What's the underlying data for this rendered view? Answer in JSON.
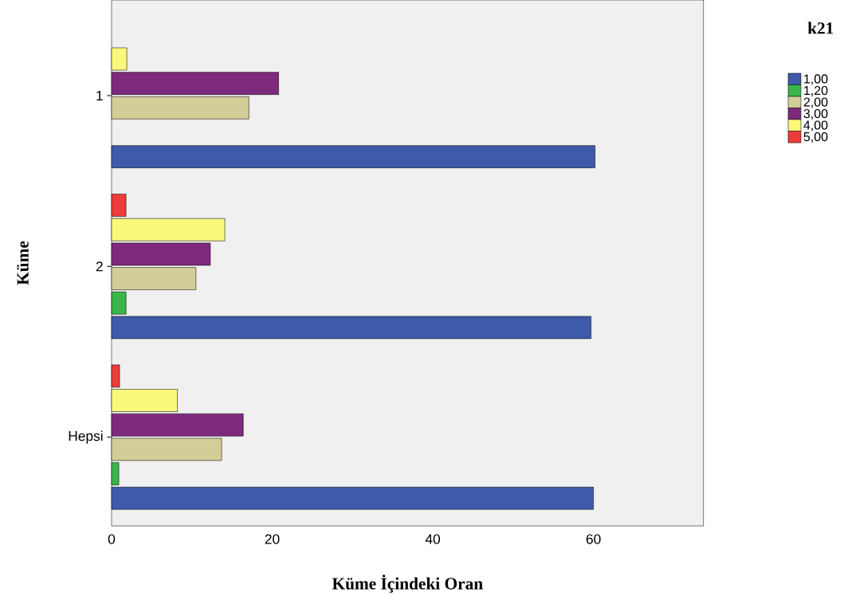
{
  "chart_data": {
    "type": "bar",
    "orientation": "horizontal",
    "xlabel": "Küme İçindeki Oran",
    "ylabel": "Küme",
    "legend_title": "k21",
    "legend": "top right",
    "categories": [
      "1",
      "2",
      "Hepsi"
    ],
    "xlim": [
      0,
      73.7
    ],
    "xticks": [
      0,
      20,
      40,
      60
    ],
    "series": [
      {
        "name": "1,00",
        "color": "#3f5aa9",
        "values": [
          60.2,
          59.7,
          60.0
        ]
      },
      {
        "name": "1,20",
        "color": "#3ab54a",
        "values": [
          null,
          1.8,
          0.9
        ]
      },
      {
        "name": "2,00",
        "color": "#d3ce97",
        "values": [
          17.1,
          10.5,
          13.7
        ]
      },
      {
        "name": "3,00",
        "color": "#7e2a7c",
        "values": [
          20.8,
          12.3,
          16.4
        ]
      },
      {
        "name": "4,00",
        "color": "#fbf87c",
        "values": [
          1.9,
          14.1,
          8.2
        ]
      },
      {
        "name": "5,00",
        "color": "#ee3b3b",
        "values": [
          null,
          1.8,
          1.0
        ]
      }
    ]
  }
}
